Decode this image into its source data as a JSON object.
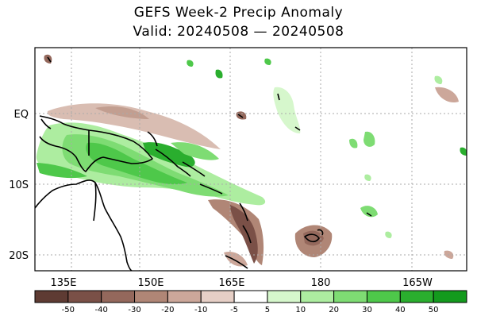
{
  "title": "GEFS Week-2 Precip Anomaly",
  "subtitle": "Valid: 20240508 — 20240508",
  "map": {
    "lon_labels": [
      "135E",
      "150E",
      "165E",
      "180",
      "165W"
    ],
    "lat_labels": [
      "EQ",
      "10S",
      "20S"
    ],
    "gridlines": true
  },
  "colorbar": {
    "labels": [
      "-50",
      "-40",
      "-30",
      "-20",
      "-10",
      "-5",
      "5",
      "10",
      "20",
      "30",
      "40",
      "50"
    ],
    "colors": [
      "#5e3b33",
      "#7a5047",
      "#94685c",
      "#b08676",
      "#cca79a",
      "#e6cfc6",
      "#ffffff",
      "#d6f7cc",
      "#adedA0",
      "#7edc73",
      "#4ec84a",
      "#2aae2e",
      "#139a1d"
    ]
  }
}
